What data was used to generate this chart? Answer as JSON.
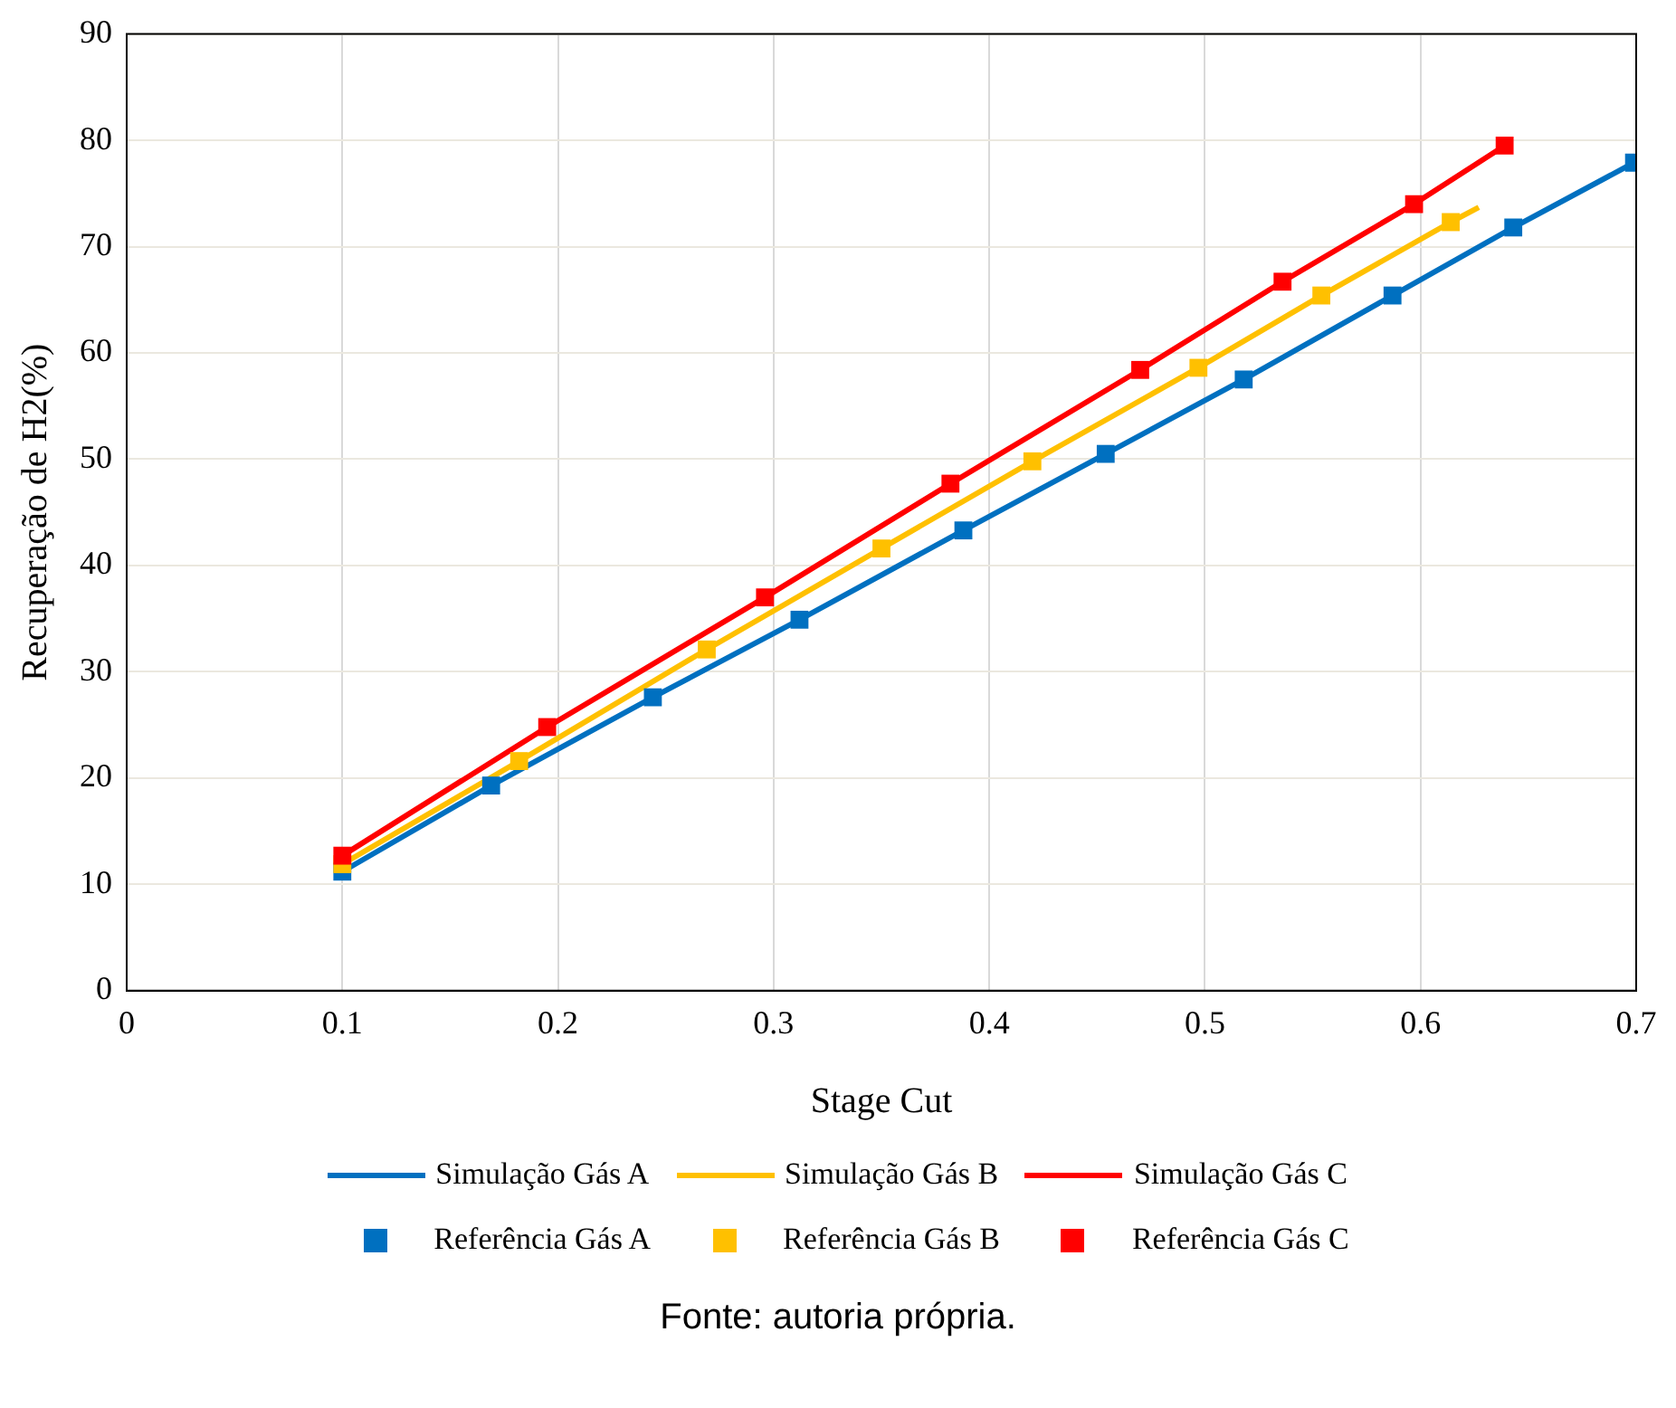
{
  "chart_data": {
    "type": "line",
    "xlabel": "Stage Cut",
    "ylabel": "Recuperação de H2(%)",
    "xlim": [
      0,
      0.7
    ],
    "xticks": [
      0,
      0.1,
      0.2,
      0.3,
      0.4,
      0.5,
      0.6,
      0.7
    ],
    "ylim": [
      0,
      90
    ],
    "yticks": [
      0,
      10,
      20,
      30,
      40,
      50,
      60,
      70,
      80,
      90
    ],
    "grid": true,
    "legend": "bottom",
    "line_style": "solid",
    "annotations": [
      "Fonte: autoria própria."
    ],
    "series": [
      {
        "name": "Simulação Gás A",
        "marker": "none",
        "color": "#0070c0",
        "x": [
          0.1,
          0.169,
          0.244,
          0.312,
          0.388,
          0.454,
          0.518,
          0.587,
          0.643,
          0.699
        ],
        "values": [
          11.2,
          19.3,
          27.6,
          34.9,
          43.3,
          50.5,
          57.5,
          65.4,
          71.8,
          77.9
        ]
      },
      {
        "name": "Simulação Gás B",
        "marker": "none",
        "color": "#ffc000",
        "x": [
          0.1,
          0.182,
          0.269,
          0.35,
          0.42,
          0.497,
          0.554,
          0.614,
          0.627
        ],
        "values": [
          11.9,
          21.6,
          32.1,
          41.6,
          49.8,
          58.6,
          65.4,
          72.3,
          73.7
        ]
      },
      {
        "name": "Simulação Gás C",
        "marker": "none",
        "color": "#ff0000",
        "x": [
          0.1,
          0.195,
          0.296,
          0.382,
          0.47,
          0.536,
          0.597,
          0.639
        ],
        "values": [
          12.7,
          24.8,
          37.0,
          47.7,
          58.4,
          66.7,
          74.0,
          79.5
        ]
      },
      {
        "name": "Referência Gás A",
        "type": "scatter",
        "marker": "square",
        "color": "#0070c0",
        "x": [
          0.1,
          0.169,
          0.244,
          0.312,
          0.388,
          0.454,
          0.518,
          0.587,
          0.643,
          0.699
        ],
        "values": [
          11.2,
          19.3,
          27.6,
          34.9,
          43.3,
          50.5,
          57.5,
          65.4,
          71.8,
          77.9
        ]
      },
      {
        "name": "Referência Gás B",
        "type": "scatter",
        "marker": "square",
        "color": "#ffc000",
        "x": [
          0.1,
          0.182,
          0.269,
          0.35,
          0.42,
          0.497,
          0.554,
          0.614
        ],
        "values": [
          11.9,
          21.6,
          32.1,
          41.6,
          49.8,
          58.6,
          65.4,
          72.3
        ]
      },
      {
        "name": "Referência Gás C",
        "type": "scatter",
        "marker": "square",
        "color": "#ff0000",
        "x": [
          0.1,
          0.195,
          0.296,
          0.382,
          0.47,
          0.536,
          0.597,
          0.639
        ],
        "values": [
          12.7,
          24.8,
          37.0,
          47.7,
          58.4,
          66.7,
          74.0,
          79.5
        ]
      }
    ]
  }
}
